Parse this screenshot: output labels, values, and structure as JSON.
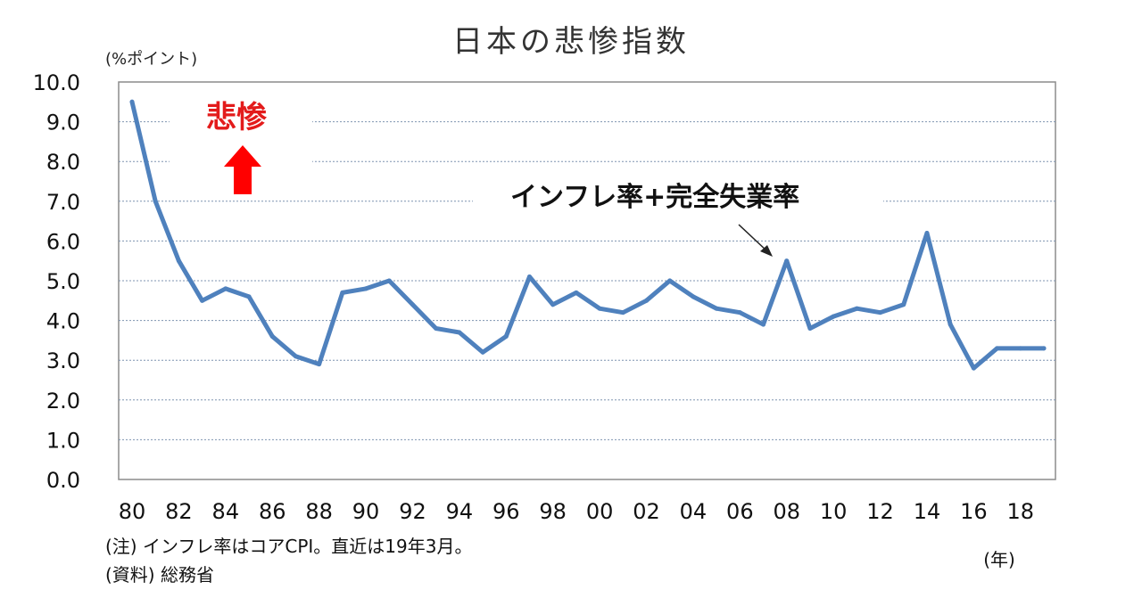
{
  "chart_data": {
    "type": "line",
    "title": "日本の悲惨指数",
    "ylabel": "(%ポイント)",
    "xlabel": "(年)",
    "ylim": [
      0,
      10
    ],
    "y_ticks": [
      "0.0",
      "1.0",
      "2.0",
      "3.0",
      "4.0",
      "5.0",
      "6.0",
      "7.0",
      "8.0",
      "9.0",
      "10.0"
    ],
    "x_tick_labels": [
      "80",
      "82",
      "84",
      "86",
      "88",
      "90",
      "92",
      "94",
      "96",
      "98",
      "00",
      "02",
      "04",
      "06",
      "08",
      "10",
      "12",
      "14",
      "16",
      "18"
    ],
    "grid": true,
    "series": [
      {
        "name": "インフレ率+完全失業率",
        "color": "#4f81bd",
        "x": [
          1980,
          1981,
          1982,
          1983,
          1984,
          1985,
          1986,
          1987,
          1988,
          1989,
          1990,
          1991,
          1992,
          1993,
          1994,
          1995,
          1996,
          1997,
          1998,
          1999,
          2000,
          2001,
          2002,
          2003,
          2004,
          2005,
          2006,
          2007,
          2008,
          2009,
          2010,
          2011,
          2012,
          2013,
          2014,
          2015,
          2016,
          2017,
          2018,
          2019
        ],
        "values": [
          9.5,
          7.0,
          5.5,
          4.5,
          4.8,
          4.6,
          3.6,
          3.1,
          2.9,
          4.7,
          4.8,
          5.0,
          4.4,
          3.8,
          3.7,
          3.2,
          3.6,
          5.1,
          4.4,
          4.7,
          4.3,
          4.2,
          4.5,
          5.0,
          4.6,
          4.3,
          4.2,
          3.9,
          5.5,
          3.8,
          4.1,
          4.3,
          4.2,
          4.4,
          6.2,
          3.9,
          2.8,
          3.3,
          3.3,
          3.3
        ]
      }
    ],
    "annotations": {
      "misery_label": "悲惨",
      "series_label": "インフレ率+完全失業率"
    }
  },
  "notes": {
    "note1": "(注) インフレ率はコアCPI。直近は19年3月。",
    "note2": "(資料) 総務省"
  },
  "colors": {
    "line": "#4f81bd",
    "grid": "#7f94b0",
    "arrow": "#ff0000"
  }
}
